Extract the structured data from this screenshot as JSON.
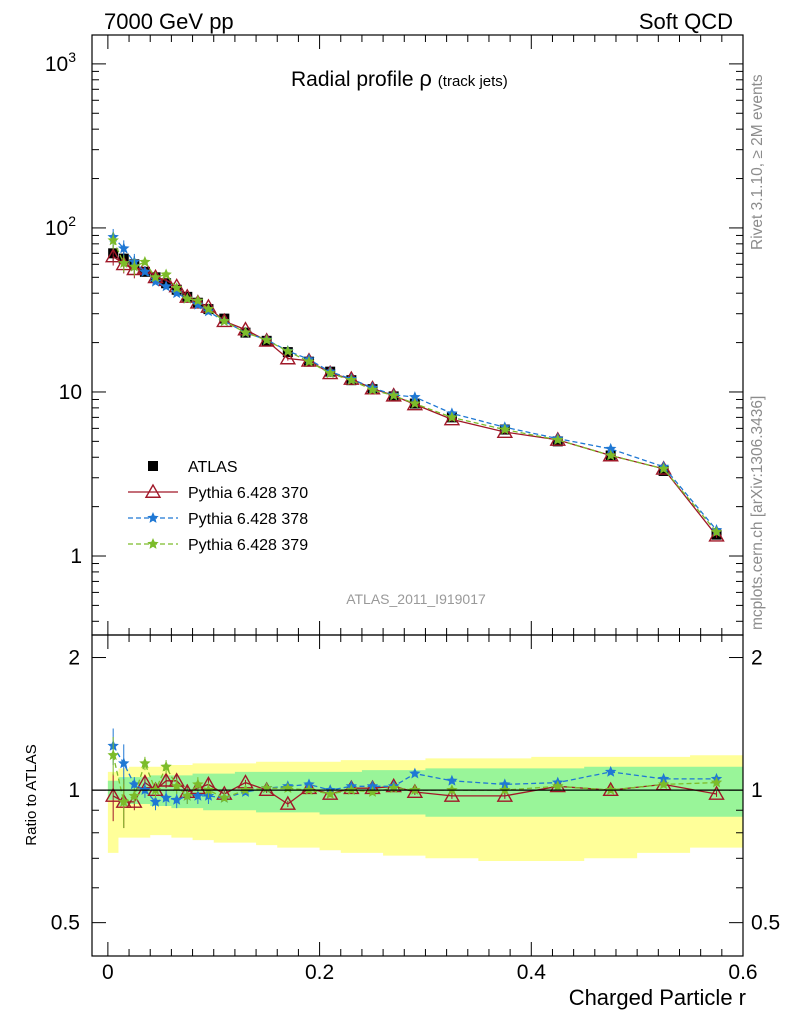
{
  "header": {
    "left": "7000 GeV pp",
    "right": "Soft QCD"
  },
  "side_labels": {
    "rivet": "Rivet 3.1.10, ≥ 2M events",
    "mcplots": "mcplots.cern.ch [arXiv:1306.3436]"
  },
  "plot": {
    "title_main": "Radial profile",
    "title_symbol": "ρ",
    "title_sub": "(track jets)",
    "analysis_id": "ATLAS_2011_I919017"
  },
  "colors": {
    "atlas": "#000000",
    "p370": "#a01828",
    "p378": "#1f78d4",
    "p379": "#7cbc2a",
    "band_inner": "#99f599",
    "band_outer": "#ffff99"
  },
  "chart_data": [
    {
      "type": "line",
      "panel": "main",
      "xlabel": "Charged Particle r",
      "ylabel": "",
      "y_scale": "log",
      "xlim": [
        -0.015,
        0.6
      ],
      "ylim": [
        0.33,
        1500
      ],
      "y_ticks": [
        {
          "v": 1,
          "label": "1"
        },
        {
          "v": 10,
          "label": "10"
        },
        {
          "v": 100,
          "label": "10",
          "sup": "2"
        },
        {
          "v": 1000,
          "label": "10",
          "sup": "3"
        }
      ],
      "x": [
        0.005,
        0.015,
        0.025,
        0.035,
        0.045,
        0.055,
        0.065,
        0.075,
        0.085,
        0.095,
        0.11,
        0.13,
        0.15,
        0.17,
        0.19,
        0.21,
        0.23,
        0.25,
        0.27,
        0.29,
        0.325,
        0.375,
        0.425,
        0.475,
        0.525,
        0.575
      ],
      "legend": {
        "position": "lower-left",
        "entries": [
          "ATLAS",
          "Pythia 6.428 370",
          "Pythia 6.428 378",
          "Pythia 6.428 379"
        ]
      },
      "series": [
        {
          "name": "ATLAS",
          "style": "square",
          "values": [
            70,
            65,
            60,
            54,
            50,
            46,
            42,
            38,
            35,
            32,
            28,
            23,
            20.5,
            17.5,
            15.3,
            13.3,
            11.8,
            10.4,
            9.4,
            8.5,
            7.0,
            5.9,
            5.0,
            4.1,
            3.3,
            1.35
          ]
        },
        {
          "name": "Pythia 6.428 370",
          "style": "triangle-solid",
          "values": [
            67,
            60,
            56,
            57,
            50,
            48,
            44,
            38,
            35,
            33,
            27,
            24,
            20.5,
            16,
            15.5,
            13,
            12,
            10.5,
            9.5,
            8.4,
            6.8,
            5.7,
            5.1,
            4.1,
            3.4,
            1.33
          ]
        },
        {
          "name": "Pythia 6.428 378",
          "style": "star-dashed",
          "values": [
            88,
            75,
            62,
            54,
            47,
            44,
            40,
            37,
            34,
            31,
            27,
            23,
            20.8,
            17.8,
            15.8,
            13.3,
            12,
            10.6,
            9.6,
            9.3,
            7.4,
            6.1,
            5.2,
            4.5,
            3.5,
            1.44
          ]
        },
        {
          "name": "Pythia 6.428 379",
          "style": "star-dashed",
          "values": [
            84,
            61,
            58,
            62,
            50,
            52,
            43,
            37,
            36,
            32,
            27,
            23,
            20.7,
            17.7,
            15.3,
            13,
            11.8,
            10.3,
            9.5,
            8.5,
            7.0,
            5.9,
            5.1,
            4.1,
            3.4,
            1.4
          ]
        }
      ]
    },
    {
      "type": "line",
      "panel": "ratio",
      "xlabel": "Charged Particle r",
      "ylabel": "Ratio to ATLAS",
      "y_scale": "log",
      "xlim": [
        -0.015,
        0.6
      ],
      "ylim": [
        0.42,
        2.25
      ],
      "y_ticks": [
        {
          "v": 0.5,
          "label": "0.5"
        },
        {
          "v": 1,
          "label": "1"
        },
        {
          "v": 2,
          "label": "2"
        }
      ],
      "x_ticks": [
        {
          "v": 0,
          "label": "0"
        },
        {
          "v": 0.2,
          "label": "0.2"
        },
        {
          "v": 0.4,
          "label": "0.4"
        },
        {
          "v": 0.6,
          "label": "0.6"
        }
      ],
      "x_edges": [
        0,
        0.01,
        0.02,
        0.03,
        0.04,
        0.05,
        0.06,
        0.07,
        0.08,
        0.09,
        0.1,
        0.12,
        0.14,
        0.16,
        0.18,
        0.2,
        0.22,
        0.24,
        0.26,
        0.28,
        0.3,
        0.35,
        0.4,
        0.45,
        0.5,
        0.55,
        0.6
      ],
      "band_inner": {
        "lower": [
          0.95,
          0.92,
          0.93,
          0.93,
          0.92,
          0.92,
          0.91,
          0.91,
          0.91,
          0.9,
          0.9,
          0.9,
          0.89,
          0.89,
          0.89,
          0.88,
          0.88,
          0.88,
          0.88,
          0.88,
          0.87,
          0.87,
          0.87,
          0.87,
          0.87,
          0.87
        ],
        "upper": [
          1.05,
          1.07,
          1.07,
          1.07,
          1.08,
          1.08,
          1.08,
          1.08,
          1.09,
          1.09,
          1.09,
          1.1,
          1.1,
          1.1,
          1.1,
          1.1,
          1.1,
          1.11,
          1.11,
          1.11,
          1.12,
          1.12,
          1.12,
          1.13,
          1.13,
          1.13
        ]
      },
      "band_outer": {
        "lower": [
          0.72,
          0.78,
          0.78,
          0.78,
          0.79,
          0.79,
          0.78,
          0.78,
          0.77,
          0.77,
          0.76,
          0.76,
          0.75,
          0.74,
          0.74,
          0.73,
          0.72,
          0.72,
          0.71,
          0.71,
          0.7,
          0.69,
          0.69,
          0.7,
          0.72,
          0.74
        ],
        "upper": [
          1.1,
          1.12,
          1.13,
          1.13,
          1.13,
          1.14,
          1.14,
          1.14,
          1.15,
          1.15,
          1.15,
          1.15,
          1.16,
          1.16,
          1.16,
          1.16,
          1.17,
          1.17,
          1.17,
          1.17,
          1.18,
          1.18,
          1.19,
          1.19,
          1.19,
          1.2
        ]
      },
      "series": [
        {
          "name": "Pythia 6.428 370",
          "style": "triangle-solid",
          "values": [
            0.97,
            0.94,
            0.94,
            1.04,
            1.0,
            1.05,
            1.05,
            0.99,
            1.01,
            1.03,
            0.98,
            1.04,
            1.0,
            0.93,
            1.01,
            0.98,
            1.01,
            1.01,
            1.02,
            0.99,
            0.97,
            0.97,
            1.02,
            1.0,
            1.03,
            0.98
          ]
        },
        {
          "name": "Pythia 6.428 378",
          "style": "star-dashed",
          "values": [
            1.26,
            1.15,
            1.03,
            1.0,
            0.94,
            0.96,
            0.95,
            0.97,
            0.97,
            0.97,
            0.96,
            0.99,
            1.01,
            1.02,
            1.03,
            1.0,
            1.02,
            1.02,
            1.02,
            1.09,
            1.05,
            1.03,
            1.04,
            1.1,
            1.06,
            1.06
          ]
        },
        {
          "name": "Pythia 6.428 379",
          "style": "star-dashed",
          "values": [
            1.2,
            0.94,
            0.97,
            1.15,
            1.0,
            1.13,
            1.02,
            0.97,
            1.03,
            1.0,
            0.96,
            1.0,
            1.01,
            1.01,
            1.0,
            0.98,
            1.0,
            0.99,
            1.01,
            1.0,
            1.0,
            1.0,
            1.02,
            1.0,
            1.03,
            1.04
          ]
        }
      ]
    }
  ]
}
